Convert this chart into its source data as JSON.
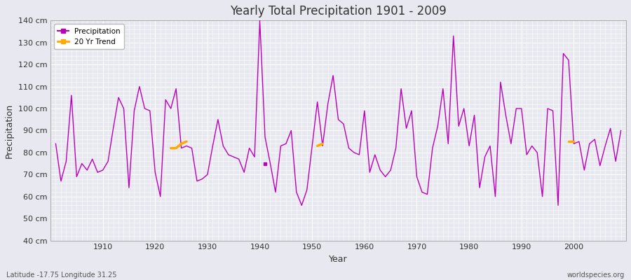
{
  "title": "Yearly Total Precipitation 1901 - 2009",
  "xlabel": "Year",
  "ylabel": "Precipitation",
  "subtitle_left": "Latitude -17.75 Longitude 31.25",
  "subtitle_right": "worldspecies.org",
  "ylim": [
    40,
    140
  ],
  "ytick_step": 10,
  "bg_color": "#e8e8f0",
  "fig_color": "#e8e8f0",
  "line_color": "#bb00bb",
  "trend_color": "#ffaa00",
  "years": [
    1901,
    1902,
    1903,
    1904,
    1905,
    1906,
    1907,
    1908,
    1909,
    1910,
    1911,
    1912,
    1913,
    1914,
    1915,
    1916,
    1917,
    1918,
    1919,
    1920,
    1921,
    1922,
    1923,
    1924,
    1925,
    1926,
    1927,
    1928,
    1929,
    1930,
    1931,
    1932,
    1933,
    1934,
    1935,
    1936,
    1937,
    1938,
    1939,
    1940,
    1941,
    1942,
    1943,
    1944,
    1945,
    1946,
    1947,
    1948,
    1949,
    1950,
    1951,
    1952,
    1953,
    1954,
    1955,
    1956,
    1957,
    1958,
    1959,
    1960,
    1961,
    1962,
    1963,
    1964,
    1965,
    1966,
    1967,
    1968,
    1969,
    1970,
    1971,
    1972,
    1973,
    1974,
    1975,
    1976,
    1977,
    1978,
    1979,
    1980,
    1981,
    1982,
    1983,
    1984,
    1985,
    1986,
    1987,
    1988,
    1989,
    1990,
    1991,
    1992,
    1993,
    1994,
    1995,
    1996,
    1997,
    1998,
    1999,
    2000,
    2001,
    2002,
    2003,
    2004,
    2005,
    2006,
    2007,
    2008,
    2009
  ],
  "precip": [
    84,
    67,
    76,
    106,
    69,
    75,
    72,
    77,
    71,
    72,
    76,
    91,
    105,
    100,
    64,
    99,
    110,
    100,
    99,
    71,
    60,
    104,
    100,
    109,
    82,
    83,
    82,
    67,
    68,
    70,
    83,
    95,
    83,
    79,
    78,
    77,
    71,
    82,
    78,
    140,
    87,
    75,
    62,
    83,
    84,
    90,
    62,
    56,
    63,
    83,
    103,
    83,
    102,
    115,
    95,
    93,
    82,
    80,
    79,
    99,
    71,
    79,
    72,
    69,
    72,
    82,
    109,
    91,
    99,
    69,
    62,
    61,
    82,
    92,
    109,
    84,
    133,
    92,
    100,
    83,
    97,
    64,
    78,
    83,
    60,
    112,
    97,
    84,
    100,
    100,
    79,
    83,
    80,
    60,
    100,
    99,
    56,
    125,
    122,
    84,
    85,
    72,
    84,
    86,
    74,
    83,
    91,
    76,
    90
  ],
  "trend_segments": [
    [
      [
        1923,
        1924,
        1925,
        1926
      ],
      [
        82,
        82,
        84,
        85
      ]
    ],
    [
      [
        1951,
        1952
      ],
      [
        83,
        84
      ]
    ],
    [
      [
        1999,
        2000
      ],
      [
        85,
        85
      ]
    ]
  ],
  "isolated_dot": [
    1941,
    75
  ]
}
